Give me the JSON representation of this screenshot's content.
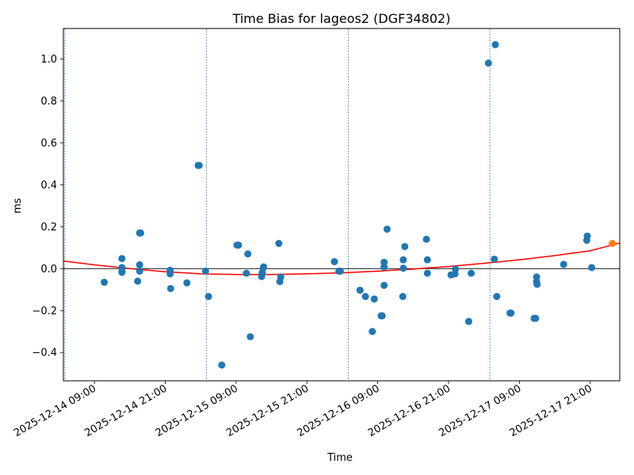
{
  "chart_data": {
    "type": "scatter",
    "title": "Time Bias for lageos2 (DGF34802)",
    "xlabel": "Time",
    "ylabel": "ms",
    "x_range": [
      "2025-12-14 03:45",
      "2025-12-18 02:00"
    ],
    "ylim": [
      -0.535,
      1.145
    ],
    "grid": false,
    "legend": "none",
    "colors": {
      "points": "#1f77b4",
      "fit": "#ff0000",
      "latest_point": "#ff7f0e",
      "zero_line": "#000000",
      "pass_lines": "#1f77b4"
    },
    "x_ticks": [
      "2025-12-14 09:00",
      "2025-12-14 21:00",
      "2025-12-15 09:00",
      "2025-12-15 21:00",
      "2025-12-16 09:00",
      "2025-12-16 21:00",
      "2025-12-17 09:00",
      "2025-12-17 21:00"
    ],
    "x_tick_labels": [
      "2025-12-14 09:00",
      "2025-12-14 21:00",
      "2025-12-15 09:00",
      "2025-12-15 21:00",
      "2025-12-16 09:00",
      "2025-12-16 21:00",
      "2025-12-17 09:00",
      "2025-12-17 21:00"
    ],
    "y_ticks": [
      -0.4,
      -0.2,
      0.0,
      0.2,
      0.4,
      0.6,
      0.8,
      1.0
    ],
    "y_tick_labels": [
      "−0.4",
      "−0.2",
      "0.0",
      "0.2",
      "0.4",
      "0.6",
      "0.8",
      "1.0"
    ],
    "vertical_lines": [
      "2025-12-14 04:00",
      "2025-12-15 04:00",
      "2025-12-16 04:00",
      "2025-12-17 04:00"
    ],
    "horizontal_line": 0.0,
    "series": [
      {
        "points": [
          [
            "2025-12-14 10:40",
            -0.065
          ],
          [
            "2025-12-14 13:40",
            0.048
          ],
          [
            "2025-12-14 13:40",
            0.005
          ],
          [
            "2025-12-14 13:40",
            -0.012
          ],
          [
            "2025-12-14 13:40",
            -0.018
          ],
          [
            "2025-12-14 16:20",
            -0.06
          ],
          [
            "2025-12-14 16:40",
            0.17
          ],
          [
            "2025-12-14 16:50",
            0.17
          ],
          [
            "2025-12-14 16:40",
            0.018
          ],
          [
            "2025-12-14 16:40",
            -0.012
          ],
          [
            "2025-12-14 21:50",
            -0.008
          ],
          [
            "2025-12-14 21:50",
            -0.025
          ],
          [
            "2025-12-14 21:55",
            -0.095
          ],
          [
            "2025-12-15 00:40",
            -0.068
          ],
          [
            "2025-12-15 02:35",
            0.492
          ],
          [
            "2025-12-15 02:45",
            0.492
          ],
          [
            "2025-12-15 03:50",
            -0.012
          ],
          [
            "2025-12-15 04:20",
            -0.133
          ],
          [
            "2025-12-15 06:35",
            -0.46
          ],
          [
            "2025-12-15 09:10",
            0.112
          ],
          [
            "2025-12-15 09:25",
            0.112
          ],
          [
            "2025-12-15 10:45",
            -0.022
          ],
          [
            "2025-12-15 11:00",
            0.07
          ],
          [
            "2025-12-15 11:25",
            -0.325
          ],
          [
            "2025-12-15 13:20",
            -0.038
          ],
          [
            "2025-12-15 13:25",
            -0.02
          ],
          [
            "2025-12-15 13:35",
            0.002
          ],
          [
            "2025-12-15 13:40",
            0.008
          ],
          [
            "2025-12-15 16:15",
            0.12
          ],
          [
            "2025-12-15 16:25",
            -0.062
          ],
          [
            "2025-12-15 16:35",
            -0.04
          ],
          [
            "2025-12-16 01:40",
            0.033
          ],
          [
            "2025-12-16 02:25",
            -0.012
          ],
          [
            "2025-12-16 02:40",
            -0.012
          ],
          [
            "2025-12-16 06:00",
            -0.103
          ],
          [
            "2025-12-16 06:55",
            -0.133
          ],
          [
            "2025-12-16 08:05",
            -0.3
          ],
          [
            "2025-12-16 08:25",
            -0.145
          ],
          [
            "2025-12-16 09:35",
            -0.225
          ],
          [
            "2025-12-16 09:45",
            -0.225
          ],
          [
            "2025-12-16 10:05",
            0.008
          ],
          [
            "2025-12-16 10:05",
            0.03
          ],
          [
            "2025-12-16 10:05",
            -0.08
          ],
          [
            "2025-12-16 10:35",
            0.188
          ],
          [
            "2025-12-16 13:15",
            -0.133
          ],
          [
            "2025-12-16 13:20",
            0.042
          ],
          [
            "2025-12-16 13:20",
            0.002
          ],
          [
            "2025-12-16 13:35",
            0.105
          ],
          [
            "2025-12-16 17:15",
            0.14
          ],
          [
            "2025-12-16 17:25",
            -0.022
          ],
          [
            "2025-12-16 17:25",
            0.042
          ],
          [
            "2025-12-16 21:25",
            -0.03
          ],
          [
            "2025-12-16 22:05",
            -0.025
          ],
          [
            "2025-12-16 22:10",
            -0.002
          ],
          [
            "2025-12-17 00:25",
            -0.252
          ],
          [
            "2025-12-17 00:50",
            -0.022
          ],
          [
            "2025-12-17 03:45",
            0.98
          ],
          [
            "2025-12-17 04:45",
            0.045
          ],
          [
            "2025-12-17 04:55",
            1.068
          ],
          [
            "2025-12-17 05:10",
            -0.133
          ],
          [
            "2025-12-17 07:25",
            -0.212
          ],
          [
            "2025-12-17 07:35",
            -0.212
          ],
          [
            "2025-12-17 11:30",
            -0.237
          ],
          [
            "2025-12-17 11:45",
            -0.237
          ],
          [
            "2025-12-17 11:55",
            -0.04
          ],
          [
            "2025-12-17 11:55",
            -0.062
          ],
          [
            "2025-12-17 12:00",
            -0.075
          ],
          [
            "2025-12-17 16:30",
            0.02
          ],
          [
            "2025-12-17 20:25",
            0.135
          ],
          [
            "2025-12-17 20:30",
            0.155
          ],
          [
            "2025-12-17 21:15",
            0.005
          ]
        ]
      },
      {
        "points": [
          [
            "2025-12-18 00:45",
            0.12
          ]
        ]
      }
    ],
    "fit_curve": [
      [
        "2025-12-14 03:45",
        0.036
      ],
      [
        "2025-12-14 09:00",
        0.018
      ],
      [
        "2025-12-14 15:00",
        0.0
      ],
      [
        "2025-12-14 21:00",
        -0.015
      ],
      [
        "2025-12-15 03:00",
        -0.025
      ],
      [
        "2025-12-15 09:00",
        -0.028
      ],
      [
        "2025-12-15 15:00",
        -0.028
      ],
      [
        "2025-12-15 21:00",
        -0.025
      ],
      [
        "2025-12-16 03:00",
        -0.02
      ],
      [
        "2025-12-16 09:00",
        -0.012
      ],
      [
        "2025-12-16 15:00",
        -0.002
      ],
      [
        "2025-12-16 21:00",
        0.01
      ],
      [
        "2025-12-17 03:00",
        0.025
      ],
      [
        "2025-12-17 09:00",
        0.042
      ],
      [
        "2025-12-17 15:00",
        0.062
      ],
      [
        "2025-12-17 21:00",
        0.085
      ],
      [
        "2025-12-18 02:00",
        0.122
      ]
    ]
  }
}
